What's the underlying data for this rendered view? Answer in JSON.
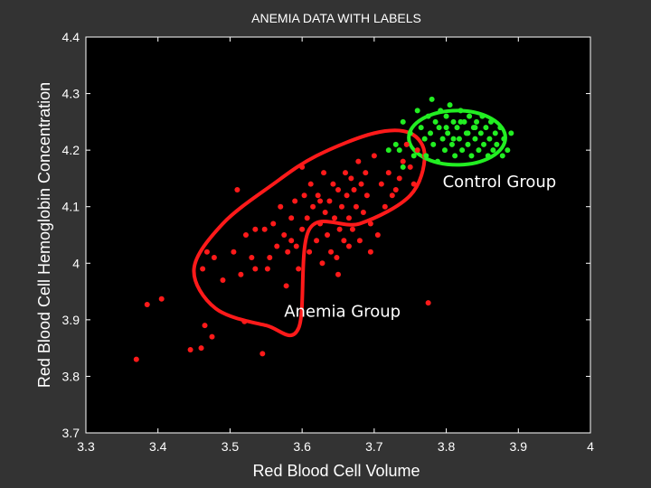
{
  "colors": {
    "figure_background": "#333333",
    "plot_background": "#000000",
    "text": "#ffffff",
    "axis": "#ffffff",
    "anemia": "#ff1a1a",
    "control": "#22ee22"
  },
  "chart_data": {
    "type": "scatter",
    "title": "ANEMIA DATA WITH LABELS",
    "xlabel": "Red Blood Cell Volume",
    "ylabel": "Red Blood Cell Hemoglobin Concentration",
    "xlim": [
      3.3,
      4.0
    ],
    "ylim": [
      3.7,
      4.4
    ],
    "x_ticks": [
      3.3,
      3.4,
      3.5,
      3.6,
      3.7,
      3.8,
      3.9,
      4.0
    ],
    "x_tick_labels": [
      "3.3",
      "3.4",
      "3.5",
      "3.6",
      "3.7",
      "3.8",
      "3.9",
      "4"
    ],
    "y_ticks": [
      3.7,
      3.8,
      3.9,
      4.0,
      4.1,
      4.2,
      4.3,
      4.4
    ],
    "y_tick_labels": [
      "3.7",
      "3.8",
      "3.9",
      "4",
      "4.1",
      "4.2",
      "4.3",
      "4.4"
    ],
    "grid": false,
    "annotations": [
      {
        "text": "Control Group",
        "x": 3.795,
        "y": 4.135
      },
      {
        "text": "Anemia Group",
        "x": 3.575,
        "y": 3.905
      }
    ],
    "series": [
      {
        "name": "Anemia Group",
        "color": "#ff1a1a",
        "points": [
          [
            3.37,
            3.83
          ],
          [
            3.385,
            3.927
          ],
          [
            3.405,
            3.937
          ],
          [
            3.445,
            3.847
          ],
          [
            3.46,
            3.85
          ],
          [
            3.465,
            3.89
          ],
          [
            3.462,
            3.99
          ],
          [
            3.468,
            4.02
          ],
          [
            3.475,
            3.87
          ],
          [
            3.478,
            4.01
          ],
          [
            3.49,
            3.97
          ],
          [
            3.505,
            4.02
          ],
          [
            3.51,
            4.13
          ],
          [
            3.515,
            3.98
          ],
          [
            3.52,
            3.897
          ],
          [
            3.522,
            4.05
          ],
          [
            3.53,
            4.01
          ],
          [
            3.535,
            3.99
          ],
          [
            3.545,
            3.84
          ],
          [
            3.548,
            4.06
          ],
          [
            3.552,
            3.99
          ],
          [
            3.555,
            4.01
          ],
          [
            3.56,
            4.07
          ],
          [
            3.565,
            4.03
          ],
          [
            3.57,
            4.1
          ],
          [
            3.575,
            4.05
          ],
          [
            3.578,
            3.96
          ],
          [
            3.58,
            4.02
          ],
          [
            3.585,
            4.08
          ],
          [
            3.59,
            4.11
          ],
          [
            3.592,
            4.03
          ],
          [
            3.595,
            3.99
          ],
          [
            3.6,
            4.17
          ],
          [
            3.6,
            4.06
          ],
          [
            3.603,
            4.12
          ],
          [
            3.607,
            4.08
          ],
          [
            3.61,
            4.02
          ],
          [
            3.612,
            4.14
          ],
          [
            3.615,
            4.1
          ],
          [
            3.62,
            4.04
          ],
          [
            3.622,
            4.12
          ],
          [
            3.625,
            4.07
          ],
          [
            3.628,
            4.0
          ],
          [
            3.63,
            4.16
          ],
          [
            3.632,
            4.09
          ],
          [
            3.635,
            4.05
          ],
          [
            3.638,
            4.11
          ],
          [
            3.64,
            4.02
          ],
          [
            3.643,
            4.14
          ],
          [
            3.645,
            4.08
          ],
          [
            3.648,
            4.01
          ],
          [
            3.65,
            4.13
          ],
          [
            3.652,
            4.06
          ],
          [
            3.655,
            4.1
          ],
          [
            3.658,
            4.04
          ],
          [
            3.66,
            4.16
          ],
          [
            3.662,
            4.12
          ],
          [
            3.665,
            4.08
          ],
          [
            3.668,
            4.15
          ],
          [
            3.67,
            4.06
          ],
          [
            3.672,
            4.13
          ],
          [
            3.675,
            4.1
          ],
          [
            3.678,
            4.18
          ],
          [
            3.68,
            4.04
          ],
          [
            3.682,
            4.14
          ],
          [
            3.685,
            4.09
          ],
          [
            3.688,
            4.16
          ],
          [
            3.69,
            4.12
          ],
          [
            3.695,
            4.07
          ],
          [
            3.7,
            4.19
          ],
          [
            3.705,
            4.05
          ],
          [
            3.71,
            4.14
          ],
          [
            3.715,
            4.1
          ],
          [
            3.72,
            4.16
          ],
          [
            3.725,
            4.12
          ],
          [
            3.73,
            4.13
          ],
          [
            3.735,
            4.15
          ],
          [
            3.74,
            4.18
          ],
          [
            3.745,
            4.21
          ],
          [
            3.75,
            4.17
          ],
          [
            3.755,
            4.14
          ],
          [
            3.76,
            4.2
          ],
          [
            3.77,
            4.19
          ],
          [
            3.775,
            3.93
          ],
          [
            3.65,
            3.98
          ],
          [
            3.695,
            4.02
          ],
          [
            3.625,
            4.11
          ],
          [
            3.585,
            4.04
          ],
          [
            3.535,
            4.06
          ],
          [
            3.665,
            4.03
          ]
        ]
      },
      {
        "name": "Control Group",
        "color": "#22ee22",
        "points": [
          [
            3.72,
            4.2
          ],
          [
            3.73,
            4.21
          ],
          [
            3.735,
            4.2
          ],
          [
            3.74,
            4.17
          ],
          [
            3.74,
            4.25
          ],
          [
            3.75,
            4.23
          ],
          [
            3.755,
            4.19
          ],
          [
            3.76,
            4.27
          ],
          [
            3.765,
            4.24
          ],
          [
            3.77,
            4.22
          ],
          [
            3.772,
            4.19
          ],
          [
            3.775,
            4.26
          ],
          [
            3.778,
            4.23
          ],
          [
            3.78,
            4.29
          ],
          [
            3.782,
            4.21
          ],
          [
            3.785,
            4.25
          ],
          [
            3.788,
            4.18
          ],
          [
            3.79,
            4.24
          ],
          [
            3.792,
            4.27
          ],
          [
            3.795,
            4.22
          ],
          [
            3.798,
            4.2
          ],
          [
            3.8,
            4.26
          ],
          [
            3.802,
            4.23
          ],
          [
            3.805,
            4.28
          ],
          [
            3.808,
            4.21
          ],
          [
            3.81,
            4.25
          ],
          [
            3.812,
            4.19
          ],
          [
            3.815,
            4.24
          ],
          [
            3.818,
            4.22
          ],
          [
            3.82,
            4.27
          ],
          [
            3.822,
            4.2
          ],
          [
            3.825,
            4.25
          ],
          [
            3.828,
            4.23
          ],
          [
            3.83,
            4.21
          ],
          [
            3.832,
            4.26
          ],
          [
            3.835,
            4.19
          ],
          [
            3.838,
            4.24
          ],
          [
            3.84,
            4.22
          ],
          [
            3.842,
            4.25
          ],
          [
            3.845,
            4.2
          ],
          [
            3.848,
            4.23
          ],
          [
            3.85,
            4.26
          ],
          [
            3.852,
            4.21
          ],
          [
            3.855,
            4.24
          ],
          [
            3.858,
            4.19
          ],
          [
            3.86,
            4.22
          ],
          [
            3.862,
            4.25
          ],
          [
            3.865,
            4.2
          ],
          [
            3.868,
            4.23
          ],
          [
            3.87,
            4.21
          ],
          [
            3.875,
            4.24
          ],
          [
            3.878,
            4.19
          ],
          [
            3.88,
            4.22
          ],
          [
            3.885,
            4.2
          ],
          [
            3.89,
            4.23
          ],
          [
            3.8,
            4.24
          ],
          [
            3.81,
            4.22
          ],
          [
            3.82,
            4.25
          ],
          [
            3.83,
            4.23
          ],
          [
            3.84,
            4.24
          ]
        ]
      }
    ],
    "ellipses": [
      {
        "name": "anemia-ellipse",
        "color": "#ff1a1a",
        "points": [
          [
            3.61,
            4.06
          ],
          [
            3.595,
            3.885
          ],
          [
            3.55,
            3.89
          ],
          [
            3.48,
            3.92
          ],
          [
            3.45,
            3.99
          ],
          [
            3.49,
            4.07
          ],
          [
            3.56,
            4.14
          ],
          [
            3.62,
            4.19
          ],
          [
            3.7,
            4.23
          ],
          [
            3.75,
            4.23
          ],
          [
            3.77,
            4.19
          ],
          [
            3.75,
            4.12
          ],
          [
            3.68,
            4.07
          ],
          [
            3.61,
            4.06
          ]
        ]
      }
    ],
    "control_ellipse": {
      "center": [
        3.815,
        4.222
      ],
      "rx": 0.067,
      "ry": 0.048,
      "rotation_deg": 0
    }
  }
}
